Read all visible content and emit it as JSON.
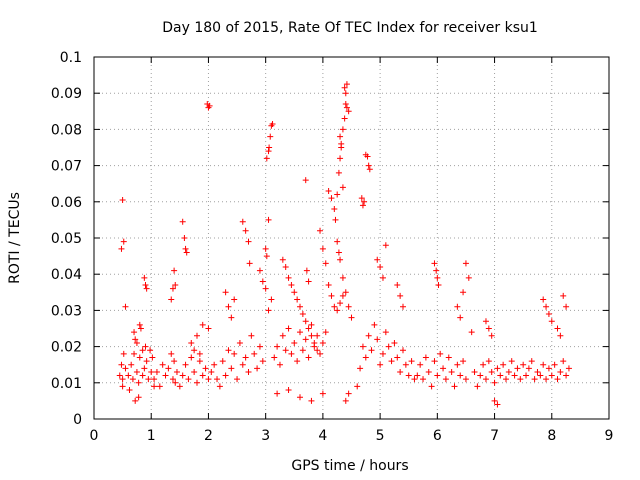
{
  "chart_data": {
    "type": "scatter",
    "title": "Day 180 of 2015, Rate Of TEC Index for receiver ksu1",
    "xlabel": "GPS time / hours",
    "ylabel": "ROTI / TECUs",
    "xlim": [
      0,
      9
    ],
    "ylim": [
      0,
      0.1
    ],
    "xticks": [
      "0",
      "1",
      "2",
      "3",
      "4",
      "5",
      "6",
      "7",
      "8",
      "9"
    ],
    "yticks": [
      "0",
      "0.01",
      "0.02",
      "0.03",
      "0.04",
      "0.05",
      "0.06",
      "0.07",
      "0.08",
      "0.09",
      "0.1"
    ],
    "grid": true,
    "marker": "+",
    "color": "#ff0000",
    "series": [
      {
        "name": "ksu1",
        "x": [
          0.45,
          0.48,
          0.5,
          0.5,
          0.52,
          0.55,
          0.5,
          0.52,
          0.48,
          0.55,
          0.6,
          0.62,
          0.65,
          0.68,
          0.7,
          0.72,
          0.75,
          0.78,
          0.8,
          0.82,
          0.85,
          0.88,
          0.9,
          0.92,
          0.95,
          0.98,
          1.0,
          1.02,
          1.05,
          0.88,
          0.9,
          0.92,
          0.7,
          0.75,
          0.8,
          0.85,
          0.72,
          0.78,
          1.05,
          1.1,
          1.15,
          1.2,
          1.25,
          1.3,
          1.35,
          1.38,
          1.4,
          1.42,
          1.45,
          1.5,
          1.55,
          1.6,
          1.65,
          1.7,
          1.75,
          1.8,
          1.85,
          1.9,
          1.95,
          2.0,
          1.55,
          1.58,
          1.6,
          1.62,
          1.35,
          1.38,
          1.4,
          1.42,
          1.98,
          2.0,
          2.02,
          2.0,
          1.7,
          1.75,
          1.8,
          1.85,
          1.9,
          2.05,
          2.1,
          2.15,
          2.2,
          2.25,
          2.3,
          2.35,
          2.4,
          2.45,
          2.5,
          2.55,
          2.6,
          2.65,
          2.7,
          2.75,
          2.8,
          2.85,
          2.9,
          2.95,
          2.6,
          2.65,
          2.7,
          2.72,
          2.3,
          2.35,
          2.4,
          2.45,
          2.9,
          2.95,
          3.0,
          3.05,
          3.1,
          3.02,
          3.05,
          3.06,
          3.08,
          3.1,
          3.12,
          3.05,
          3.0,
          3.02,
          3.15,
          3.2,
          3.25,
          3.3,
          3.35,
          3.4,
          3.45,
          3.5,
          3.55,
          3.6,
          3.65,
          3.7,
          3.75,
          3.8,
          3.85,
          3.9,
          3.95,
          4.0,
          4.05,
          3.3,
          3.35,
          3.4,
          3.45,
          3.5,
          3.55,
          3.6,
          3.65,
          3.7,
          3.75,
          3.8,
          3.85,
          3.9,
          3.2,
          3.4,
          3.6,
          3.8,
          4.0,
          3.7,
          3.72,
          3.75,
          3.95,
          4.0,
          4.05,
          4.1,
          4.15,
          4.2,
          4.25,
          4.3,
          4.35,
          4.4,
          4.45,
          4.5,
          4.1,
          4.15,
          4.2,
          4.22,
          4.25,
          4.28,
          4.3,
          4.32,
          4.35,
          4.38,
          4.4,
          4.42,
          4.38,
          4.4,
          4.42,
          4.45,
          4.3,
          4.32,
          4.35,
          4.25,
          4.28,
          4.3,
          4.35,
          4.4,
          4.45,
          4.6,
          4.65,
          4.7,
          4.75,
          4.8,
          4.85,
          4.9,
          4.95,
          5.0,
          5.05,
          5.1,
          5.15,
          5.2,
          5.25,
          5.3,
          5.35,
          5.4,
          5.45,
          5.5,
          5.55,
          5.6,
          4.75,
          4.78,
          4.8,
          4.82,
          4.68,
          4.7,
          4.72,
          4.95,
          5.0,
          5.05,
          5.1,
          5.3,
          5.35,
          5.4,
          5.65,
          5.7,
          5.75,
          5.8,
          5.85,
          5.9,
          5.95,
          6.0,
          6.05,
          6.1,
          6.15,
          6.2,
          6.25,
          6.3,
          6.35,
          6.4,
          6.45,
          6.5,
          5.95,
          5.98,
          6.0,
          6.02,
          6.35,
          6.4,
          6.45,
          6.5,
          6.55,
          6.6,
          6.65,
          6.7,
          6.75,
          6.8,
          6.85,
          6.9,
          6.95,
          7.0,
          7.05,
          7.1,
          7.15,
          7.2,
          7.25,
          7.3,
          7.35,
          7.4,
          7.45,
          7.5,
          7.55,
          7.6,
          7.65,
          7.7,
          7.75,
          7.8,
          7.85,
          7.9,
          7.95,
          8.0,
          8.05,
          8.1,
          8.15,
          8.2,
          8.25,
          8.3,
          7.85,
          7.9,
          7.95,
          8.0,
          8.1,
          8.15,
          8.2,
          8.25,
          6.85,
          6.9,
          6.95,
          7.0,
          7.05
        ],
        "y": [
          0.012,
          0.015,
          0.011,
          0.009,
          0.018,
          0.014,
          0.0605,
          0.049,
          0.047,
          0.031,
          0.012,
          0.008,
          0.015,
          0.011,
          0.018,
          0.022,
          0.013,
          0.01,
          0.017,
          0.025,
          0.012,
          0.014,
          0.02,
          0.016,
          0.011,
          0.019,
          0.013,
          0.017,
          0.009,
          0.039,
          0.037,
          0.036,
          0.024,
          0.021,
          0.026,
          0.019,
          0.005,
          0.006,
          0.011,
          0.013,
          0.009,
          0.015,
          0.012,
          0.014,
          0.018,
          0.011,
          0.016,
          0.01,
          0.013,
          0.009,
          0.012,
          0.015,
          0.011,
          0.017,
          0.013,
          0.01,
          0.016,
          0.012,
          0.014,
          0.011,
          0.0545,
          0.05,
          0.047,
          0.046,
          0.033,
          0.036,
          0.041,
          0.037,
          0.087,
          0.086,
          0.0865,
          0.025,
          0.021,
          0.019,
          0.023,
          0.018,
          0.026,
          0.013,
          0.015,
          0.011,
          0.009,
          0.016,
          0.012,
          0.019,
          0.014,
          0.018,
          0.011,
          0.021,
          0.015,
          0.017,
          0.013,
          0.023,
          0.018,
          0.014,
          0.02,
          0.016,
          0.0545,
          0.052,
          0.049,
          0.043,
          0.035,
          0.031,
          0.028,
          0.033,
          0.041,
          0.038,
          0.036,
          0.03,
          0.033,
          0.072,
          0.074,
          0.075,
          0.078,
          0.081,
          0.0815,
          0.055,
          0.047,
          0.045,
          0.017,
          0.02,
          0.015,
          0.023,
          0.019,
          0.025,
          0.018,
          0.021,
          0.016,
          0.024,
          0.019,
          0.022,
          0.017,
          0.026,
          0.02,
          0.023,
          0.018,
          0.021,
          0.024,
          0.044,
          0.042,
          0.039,
          0.037,
          0.035,
          0.033,
          0.031,
          0.029,
          0.027,
          0.025,
          0.023,
          0.021,
          0.019,
          0.007,
          0.008,
          0.006,
          0.005,
          0.007,
          0.066,
          0.041,
          0.038,
          0.052,
          0.047,
          0.043,
          0.037,
          0.034,
          0.031,
          0.03,
          0.032,
          0.034,
          0.035,
          0.031,
          0.028,
          0.063,
          0.061,
          0.058,
          0.055,
          0.062,
          0.068,
          0.072,
          0.075,
          0.08,
          0.083,
          0.087,
          0.0925,
          0.0915,
          0.09,
          0.086,
          0.085,
          0.078,
          0.076,
          0.064,
          0.049,
          0.046,
          0.044,
          0.039,
          0.005,
          0.007,
          0.009,
          0.014,
          0.02,
          0.017,
          0.023,
          0.019,
          0.026,
          0.022,
          0.015,
          0.018,
          0.024,
          0.02,
          0.016,
          0.021,
          0.017,
          0.013,
          0.019,
          0.015,
          0.012,
          0.016,
          0.011,
          0.073,
          0.0725,
          0.07,
          0.069,
          0.061,
          0.059,
          0.06,
          0.044,
          0.042,
          0.039,
          0.048,
          0.037,
          0.034,
          0.031,
          0.012,
          0.015,
          0.011,
          0.017,
          0.013,
          0.009,
          0.016,
          0.012,
          0.018,
          0.014,
          0.011,
          0.017,
          0.013,
          0.009,
          0.015,
          0.012,
          0.016,
          0.011,
          0.043,
          0.041,
          0.039,
          0.037,
          0.031,
          0.028,
          0.035,
          0.043,
          0.039,
          0.024,
          0.013,
          0.009,
          0.012,
          0.015,
          0.011,
          0.016,
          0.013,
          0.01,
          0.014,
          0.012,
          0.015,
          0.011,
          0.013,
          0.016,
          0.012,
          0.014,
          0.011,
          0.015,
          0.012,
          0.014,
          0.016,
          0.011,
          0.013,
          0.012,
          0.015,
          0.011,
          0.014,
          0.012,
          0.015,
          0.011,
          0.013,
          0.016,
          0.012,
          0.014,
          0.033,
          0.031,
          0.029,
          0.027,
          0.025,
          0.023,
          0.034,
          0.031,
          0.027,
          0.025,
          0.023,
          0.005,
          0.004
        ]
      }
    ]
  }
}
